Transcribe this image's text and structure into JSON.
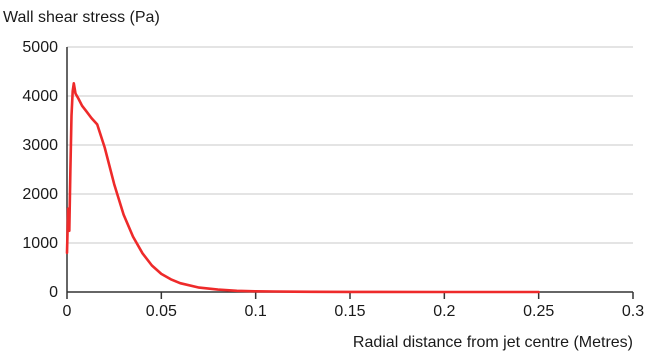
{
  "chart_data": {
    "type": "line",
    "title": "",
    "ylabel": "Wall shear stress (Pa)",
    "xlabel": "Radial distance from jet centre (Metres)",
    "xlim": [
      0,
      0.3
    ],
    "ylim": [
      0,
      5000
    ],
    "x_ticks": [
      0,
      0.05,
      0.1,
      0.15,
      0.2,
      0.25,
      0.3
    ],
    "x_tick_labels": [
      "0",
      "0.05",
      "0.1",
      "0.15",
      "0.2",
      "0.25",
      "0.3"
    ],
    "y_ticks": [
      0,
      1000,
      2000,
      3000,
      4000,
      5000
    ],
    "y_tick_labels": [
      "0",
      "1000",
      "2000",
      "3000",
      "4000",
      "5000"
    ],
    "grid": "horizontal",
    "legend": "none",
    "line_color": "#ee2a2a",
    "series": [
      {
        "x": [
          0,
          0.0006,
          0.0012,
          0.0018,
          0.0024,
          0.003,
          0.0036,
          0.0045,
          0.006,
          0.008,
          0.01,
          0.013,
          0.016,
          0.02,
          0.025,
          0.03,
          0.035,
          0.04,
          0.045,
          0.05,
          0.055,
          0.06,
          0.07,
          0.08,
          0.09,
          0.1,
          0.11,
          0.12,
          0.13,
          0.15,
          0.2,
          0.25
        ],
        "y": [
          800,
          1700,
          1250,
          2500,
          3600,
          4100,
          4260,
          4050,
          3950,
          3800,
          3700,
          3550,
          3420,
          2950,
          2200,
          1580,
          1130,
          790,
          540,
          370,
          260,
          180,
          90,
          50,
          25,
          15,
          10,
          7,
          5,
          3,
          1,
          0
        ]
      }
    ]
  }
}
